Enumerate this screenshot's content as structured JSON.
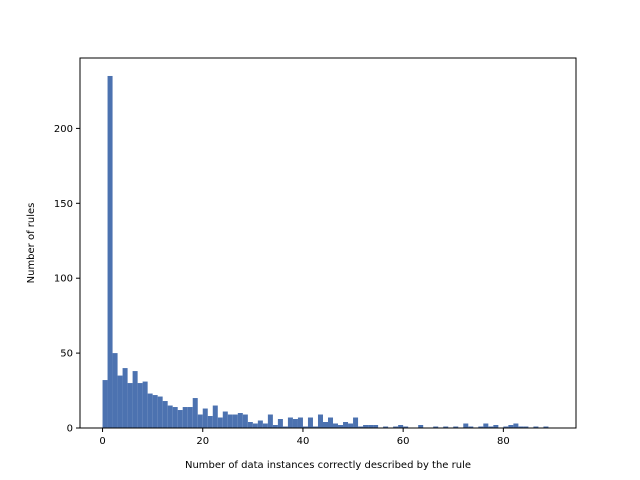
{
  "chart_data": {
    "type": "bar",
    "title": "",
    "xlabel": "Number of data instances correctly described by the rule",
    "ylabel": "Number of rules",
    "xlim": [
      -4.5,
      94.5
    ],
    "ylim": [
      0,
      247
    ],
    "xticks": [
      0,
      20,
      40,
      60,
      80
    ],
    "yticks": [
      0,
      50,
      100,
      150,
      200
    ],
    "bar_color": "#4c72b0",
    "bin_width": 1,
    "bin_starts": [
      0,
      1,
      2,
      3,
      4,
      5,
      6,
      7,
      8,
      9,
      10,
      11,
      12,
      13,
      14,
      15,
      16,
      17,
      18,
      19,
      20,
      21,
      22,
      23,
      24,
      25,
      26,
      27,
      28,
      29,
      30,
      31,
      32,
      33,
      34,
      35,
      36,
      37,
      38,
      39,
      40,
      41,
      42,
      43,
      44,
      45,
      46,
      47,
      48,
      49,
      50,
      51,
      52,
      53,
      54,
      55,
      56,
      57,
      58,
      59,
      60,
      61,
      62,
      63,
      64,
      65,
      66,
      67,
      68,
      69,
      70,
      71,
      72,
      73,
      74,
      75,
      76,
      77,
      78,
      79,
      80,
      81,
      82,
      83,
      84,
      85,
      86,
      87,
      88
    ],
    "values": [
      32,
      235,
      50,
      35,
      40,
      30,
      38,
      30,
      31,
      23,
      22,
      21,
      18,
      15,
      14,
      12,
      14,
      14,
      20,
      9,
      13,
      8,
      15,
      7,
      11,
      9,
      9,
      10,
      9,
      4,
      3,
      5,
      3,
      9,
      2,
      6,
      1,
      7,
      6,
      7,
      1,
      7,
      1,
      9,
      4,
      7,
      3,
      2,
      4,
      3,
      7,
      1,
      2,
      2,
      2,
      0,
      1,
      0,
      1,
      2,
      1,
      0,
      0,
      2,
      0,
      0,
      1,
      0,
      1,
      0,
      1,
      0,
      3,
      1,
      0,
      1,
      3,
      1,
      2,
      0,
      1,
      2,
      3,
      1,
      1,
      0,
      1,
      0,
      1
    ]
  }
}
